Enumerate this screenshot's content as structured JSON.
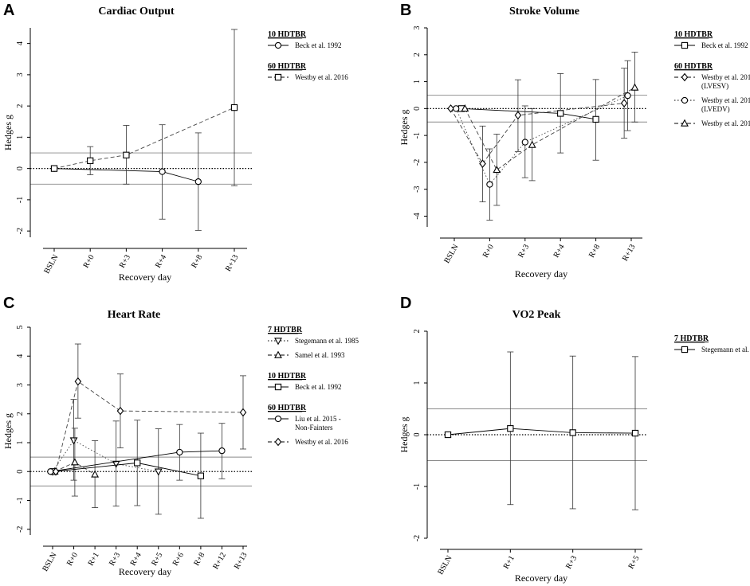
{
  "chart_data": [
    {
      "type": "line",
      "panel_label": "A",
      "title": "Cardiac Output",
      "xlabel": "Recovery day",
      "ylabel": "Hedges g",
      "categories": [
        "BSLN",
        "R+0",
        "R+3",
        "R+4",
        "R+8",
        "R+13"
      ],
      "yticks": [
        "-2",
        "-1",
        "0",
        "1",
        "2",
        "3",
        "4"
      ],
      "ylim": [
        -2.2,
        4.5
      ],
      "ref_lines": [
        -0.5,
        0,
        0.5
      ],
      "legend_groups": [
        {
          "heading": "10 HDTBR",
          "entries": [
            {
              "label": "Beck et al. 1992",
              "marker": "circle",
              "dash": "none"
            }
          ]
        },
        {
          "heading": "60 HDTBR",
          "entries": [
            {
              "label": "Westby et al. 2016",
              "marker": "square",
              "dash": "dashed"
            }
          ]
        }
      ],
      "series": [
        {
          "name": "Beck et al. 1992",
          "marker": "circle",
          "dash": "none",
          "points": [
            {
              "x": 0,
              "y": 0,
              "lo": 0,
              "hi": 0
            },
            {
              "x": 3,
              "y": -0.1,
              "lo": -1.62,
              "hi": 1.4
            },
            {
              "x": 4,
              "y": -0.42,
              "lo": -1.98,
              "hi": 1.14
            }
          ]
        },
        {
          "name": "Westby et al. 2016",
          "marker": "square",
          "dash": "dashed",
          "points": [
            {
              "x": 0,
              "y": 0,
              "lo": 0,
              "hi": 0
            },
            {
              "x": 1,
              "y": 0.25,
              "lo": -0.2,
              "hi": 0.7
            },
            {
              "x": 2,
              "y": 0.43,
              "lo": -0.5,
              "hi": 1.38
            },
            {
              "x": 5,
              "y": 1.95,
              "lo": -0.55,
              "hi": 4.45
            }
          ]
        }
      ]
    },
    {
      "type": "line",
      "panel_label": "B",
      "title": "Stroke Volume",
      "xlabel": "Recovery day",
      "ylabel": "Hedges g",
      "categories": [
        "BSLN",
        "R+0",
        "R+3",
        "R+4",
        "R+8",
        "R+13"
      ],
      "yticks": [
        "-4",
        "-3",
        "-2",
        "-1",
        "0",
        "1",
        "2",
        "3"
      ],
      "ylim": [
        -4.4,
        3
      ],
      "ref_lines": [
        -0.5,
        0,
        0.5
      ],
      "legend_groups": [
        {
          "heading": "10 HDTBR",
          "entries": [
            {
              "label": "Beck et al. 1992",
              "marker": "square",
              "dash": "none"
            }
          ]
        },
        {
          "heading": "60 HDTBR",
          "entries": [
            {
              "label": "Westby et al. 2016",
              "label2": "(LVESV)",
              "marker": "diamond",
              "dash": "dashed"
            },
            {
              "label": "Westby et al. 2016",
              "label2": "(LVEDV)",
              "marker": "circle",
              "dash": "dotted"
            },
            {
              "label": "Westby et al. 2016",
              "marker": "triangle",
              "dash": "dashed"
            }
          ]
        }
      ],
      "series": [
        {
          "name": "Beck et al. 1992",
          "marker": "square",
          "dash": "none",
          "points": [
            {
              "x": 0.2,
              "y": 0,
              "lo": 0,
              "hi": 0
            },
            {
              "x": 3,
              "y": -0.18,
              "lo": -1.65,
              "hi": 1.3
            },
            {
              "x": 4,
              "y": -0.4,
              "lo": -1.92,
              "hi": 1.08
            }
          ]
        },
        {
          "name": "Westby et al. 2016 (LVESV)",
          "marker": "diamond",
          "dash": "dashed",
          "points": [
            {
              "x": -0.1,
              "y": 0,
              "lo": 0,
              "hi": 0
            },
            {
              "x": 0.8,
              "y": -2.05,
              "lo": -3.47,
              "hi": -0.65
            },
            {
              "x": 1.8,
              "y": -0.25,
              "lo": -1.6,
              "hi": 1.07
            },
            {
              "x": 4.8,
              "y": 0.2,
              "lo": -1.1,
              "hi": 1.5
            }
          ]
        },
        {
          "name": "Westby et al. 2016 (LVEDV)",
          "marker": "circle",
          "dash": "dotted",
          "points": [
            {
              "x": 0.05,
              "y": 0,
              "lo": 0,
              "hi": 0
            },
            {
              "x": 1.0,
              "y": -2.82,
              "lo": -4.15,
              "hi": -1.5
            },
            {
              "x": 2.0,
              "y": -1.25,
              "lo": -2.57,
              "hi": 0.1
            },
            {
              "x": 4.9,
              "y": 0.48,
              "lo": -0.82,
              "hi": 1.78
            }
          ]
        },
        {
          "name": "Westby et al. 2016",
          "marker": "triangle",
          "dash": "dashed",
          "points": [
            {
              "x": 0.3,
              "y": 0,
              "lo": 0,
              "hi": 0
            },
            {
              "x": 1.2,
              "y": -2.28,
              "lo": -3.6,
              "hi": -0.95
            },
            {
              "x": 2.2,
              "y": -1.35,
              "lo": -2.68,
              "hi": 0
            },
            {
              "x": 5.1,
              "y": 0.78,
              "lo": -0.5,
              "hi": 2.1
            }
          ]
        }
      ]
    },
    {
      "type": "line",
      "panel_label": "C",
      "title": "Heart Rate",
      "xlabel": "Recovery day",
      "ylabel": "Hedges g",
      "categories": [
        "BSLN",
        "R+0",
        "R+1",
        "R+3",
        "R+4",
        "R+5",
        "R+6",
        "R+8",
        "R+12",
        "R+13"
      ],
      "yticks": [
        "-2",
        "-1",
        "0",
        "1",
        "2",
        "3",
        "4",
        "5"
      ],
      "ylim": [
        -2.2,
        5
      ],
      "ref_lines": [
        -0.5,
        0,
        0.5
      ],
      "legend_groups": [
        {
          "heading": "7 HDTBR",
          "entries": [
            {
              "label": "Stegemann et al. 1985",
              "marker": "triangle-down",
              "dash": "dotted"
            },
            {
              "label": "Samel et al. 1993",
              "marker": "triangle",
              "dash": "dashed"
            }
          ]
        },
        {
          "heading": "10 HDTBR",
          "entries": [
            {
              "label": "Beck et al. 1992",
              "marker": "square",
              "dash": "none"
            }
          ]
        },
        {
          "heading": "60 HDTBR",
          "entries": [
            {
              "label": "Liu et al. 2015 -",
              "label2": "Non-Fainters",
              "marker": "circle",
              "dash": "none"
            },
            {
              "label": "Westby et al. 2016",
              "marker": "diamond",
              "dash": "dashed"
            }
          ]
        }
      ],
      "series": [
        {
          "name": "Stegemann et al. 1985",
          "marker": "triangle-down",
          "dash": "dotted",
          "points": [
            {
              "x": 0.0,
              "y": 0,
              "lo": 0,
              "hi": 0
            },
            {
              "x": 1.0,
              "y": 1.08,
              "lo": -0.3,
              "hi": 2.5
            },
            {
              "x": 3.0,
              "y": 0.27,
              "lo": -1.2,
              "hi": 1.75
            },
            {
              "x": 5.0,
              "y": 0.0,
              "lo": -1.48,
              "hi": 1.48
            }
          ]
        },
        {
          "name": "Samel et al. 1993",
          "marker": "triangle",
          "dash": "dashed",
          "points": [
            {
              "x": 0.1,
              "y": 0,
              "lo": 0,
              "hi": 0
            },
            {
              "x": 1.05,
              "y": 0.32,
              "lo": -0.85,
              "hi": 1.5
            },
            {
              "x": 2.0,
              "y": -0.1,
              "lo": -1.25,
              "hi": 1.07
            }
          ]
        },
        {
          "name": "Beck et al. 1992",
          "marker": "square",
          "dash": "none",
          "points": [
            {
              "x": 0.05,
              "y": 0,
              "lo": 0,
              "hi": 0
            },
            {
              "x": 4.0,
              "y": 0.3,
              "lo": -1.18,
              "hi": 1.78
            },
            {
              "x": 7.0,
              "y": -0.15,
              "lo": -1.62,
              "hi": 1.33
            }
          ]
        },
        {
          "name": "Liu et al. 2015 - Non-Fainters",
          "marker": "circle",
          "dash": "none",
          "points": [
            {
              "x": -0.1,
              "y": 0,
              "lo": 0,
              "hi": 0
            },
            {
              "x": 6.0,
              "y": 0.67,
              "lo": -0.3,
              "hi": 1.63
            },
            {
              "x": 8.0,
              "y": 0.72,
              "lo": -0.25,
              "hi": 1.67
            }
          ]
        },
        {
          "name": "Westby et al. 2016",
          "marker": "diamond",
          "dash": "dashed",
          "points": [
            {
              "x": 0.15,
              "y": 0,
              "lo": 0,
              "hi": 0
            },
            {
              "x": 1.2,
              "y": 3.12,
              "lo": 1.85,
              "hi": 4.42
            },
            {
              "x": 3.2,
              "y": 2.1,
              "lo": 0.82,
              "hi": 3.38
            },
            {
              "x": 9.0,
              "y": 2.05,
              "lo": 0.78,
              "hi": 3.32
            }
          ]
        }
      ]
    },
    {
      "type": "line",
      "panel_label": "D",
      "title": "VO2 Peak",
      "xlabel": "Recovery day",
      "ylabel": "Hedges g",
      "categories": [
        "BSLN",
        "R+1",
        "R+3",
        "R+5"
      ],
      "yticks": [
        "-2",
        "-1",
        "0",
        "1",
        "2"
      ],
      "ylim": [
        -2,
        2
      ],
      "ref_lines": [
        -0.5,
        0,
        0.5
      ],
      "legend_groups": [
        {
          "heading": "7 HDTBR",
          "entries": [
            {
              "label": "Stegemann et al. 1985",
              "marker": "square",
              "dash": "none"
            }
          ]
        }
      ],
      "series": [
        {
          "name": "Stegemann et al. 1985",
          "marker": "square",
          "dash": "none",
          "points": [
            {
              "x": 0,
              "y": 0,
              "lo": 0,
              "hi": 0
            },
            {
              "x": 1,
              "y": 0.12,
              "lo": -1.35,
              "hi": 1.6
            },
            {
              "x": 2,
              "y": 0.04,
              "lo": -1.43,
              "hi": 1.52
            },
            {
              "x": 3,
              "y": 0.03,
              "lo": -1.45,
              "hi": 1.51
            }
          ]
        }
      ]
    }
  ]
}
